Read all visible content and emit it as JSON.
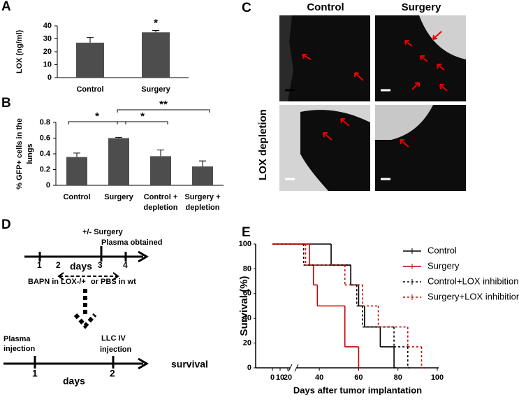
{
  "chart_data": [
    {
      "panel": "A",
      "type": "bar",
      "y_label": [
        "LOX (ng/ml)"
      ],
      "categories": [
        "Control",
        "Surgery"
      ],
      "values": [
        27,
        35
      ],
      "errors": [
        4,
        1.5
      ],
      "color": "#4d4d4d",
      "ylim": [
        0,
        40
      ],
      "yticks": [
        0,
        10,
        20,
        30,
        40
      ],
      "annotations": [
        "*"
      ]
    },
    {
      "panel": "B",
      "type": "bar",
      "y_label": [
        "% GFP+ cells in the",
        "lungs"
      ],
      "categories": [
        [
          "Control"
        ],
        [
          "Surgery"
        ],
        [
          "Control +",
          "depletion"
        ],
        [
          "Surgery +",
          "depletion"
        ]
      ],
      "values": [
        0.36,
        0.6,
        0.37,
        0.24
      ],
      "errors": [
        0.05,
        0.01,
        0.08,
        0.07
      ],
      "color": "#4d4d4d",
      "ylim": [
        0,
        0.8
      ],
      "yticks": [
        0,
        0.2,
        0.4,
        0.6,
        0.8
      ],
      "annotations": [
        "*",
        "*",
        "**"
      ]
    },
    {
      "panel": "E",
      "type": "survival",
      "y_label": "Survival (%)",
      "x_label": "Days after tumor implantation",
      "ylim": [
        0,
        100
      ],
      "yticks": [
        0,
        20,
        40,
        60,
        80,
        100
      ],
      "xlim_inset": [
        0,
        20
      ],
      "xticks_inset": [
        0,
        10,
        20
      ],
      "xlim": [
        30,
        100
      ],
      "xticks": [
        40,
        60,
        80,
        100
      ],
      "series": [
        {
          "name": "Control",
          "color": "#000000",
          "line_style": "solid",
          "x": [
            0,
            46,
            56,
            60,
            63,
            71,
            78
          ],
          "values": [
            100,
            83,
            67,
            50,
            33,
            17,
            0
          ]
        },
        {
          "name": "Surgery",
          "color": "#cc0000",
          "line_style": "solid",
          "x": [
            0,
            35,
            37,
            39,
            53,
            60
          ],
          "values": [
            100,
            83,
            67,
            50,
            17,
            0
          ]
        },
        {
          "name": "Control+LOX inhibition",
          "color": "#000000",
          "line_style": "dotted",
          "x": [
            0,
            32,
            56,
            59,
            62,
            78,
            85
          ],
          "values": [
            100,
            83,
            67,
            50,
            33,
            17,
            0
          ]
        },
        {
          "name": "Surgery+LOX inhibition",
          "color": "#cc0000",
          "line_style": "dotted",
          "x": [
            0,
            33,
            53,
            62,
            70,
            85,
            92
          ],
          "values": [
            100,
            83,
            67,
            50,
            33,
            17,
            0
          ]
        }
      ]
    }
  ],
  "panel_c": {
    "letter": "C",
    "columns": [
      "Control",
      "Surgery"
    ],
    "row_label": "LOX depletion"
  },
  "panel_d": {
    "letter": "D",
    "top_labels": [
      "+/- Surgery",
      "Plasma obtained"
    ],
    "timeline1": [
      "1",
      "2",
      "days",
      "3",
      "4"
    ],
    "treatment": [
      "BAPN in LOX-/+",
      "or PBS in wt"
    ],
    "bottom_labels": [
      "Plasma",
      "injection",
      "LLC IV",
      "injection"
    ],
    "timeline2": [
      "1",
      "days",
      "2"
    ],
    "outcome": "survival"
  }
}
